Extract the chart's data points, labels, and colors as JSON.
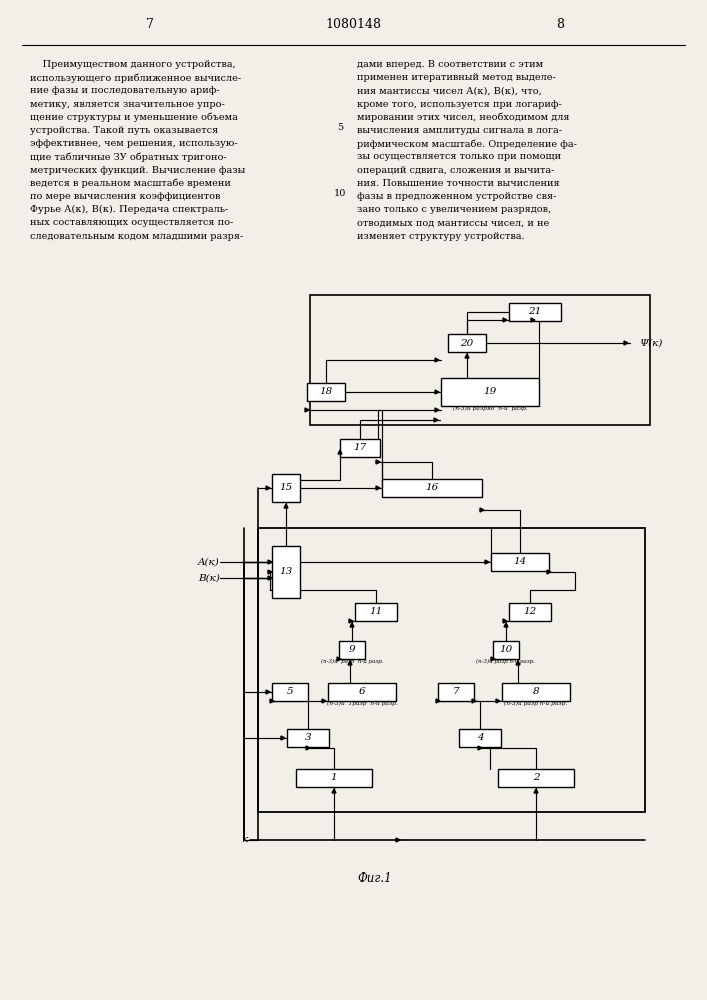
{
  "title": "1080148",
  "page_left": "7",
  "page_right": "8",
  "fig_label": "Фиг.1",
  "text_left": "    Преимуществом данного устройства,\nиспользующего приближенное вычисле-\nние фазы и последовательную ариф-\nметику, является значительное упро-\nщение структуры и уменьшение объема\nустройства. Такой путь оказывается\nэффективнее, чем решения, использую-\nщие табличные ЗУ обратных тригоно-\nметрических функций. Вычисление фазы\nведется в реальном масштабе времени\nпо мере вычисления коэффициентов\nФурье А(к), В(к). Передача спектраль-\nных составляющих осуществляется по-\nследовательным кодом младшими разря-",
  "text_right": "дами вперед. В соответствии с этим\nприменен итеративный метод выделе-\nния мантиссы чисел А(к), В(к), что,\nкроме того, используется при логариф-\nмировании этих чисел, необходимом для\nвычисления амплитуды сигнала в лога-\nрифмическом масштабе. Определение фа-\nзы осуществляется только при помощи\nопераций сдвига, сложения и вычита-\nния. Повышение точности вычисления\nфазы в предложенном устройстве свя-\nзано только с увеличением разрядов,\nотводимых под мантиссы чисел, и не\nизменяет структуру устройства.",
  "bg_color": "#f2efe9",
  "lnum5": "5",
  "lnum10": "10"
}
